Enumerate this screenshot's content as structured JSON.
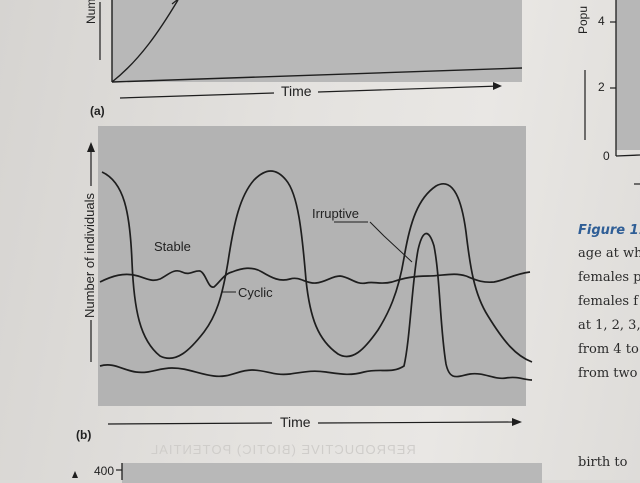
{
  "panel_a": {
    "tag": "(a)",
    "xlabel": "Time",
    "ylabel_fragment": "Num"
  },
  "panel_b": {
    "tag": "(b)",
    "xlabel": "Time",
    "ylabel": "Number of individuals",
    "labels": {
      "stable": "Stable",
      "cyclic": "Cyclic",
      "irruptive": "Irruptive"
    }
  },
  "panel_c": {
    "tick_label": "400"
  },
  "right_panel": {
    "ylabel_fragment": "Popu",
    "tick_4": "4",
    "tick_2": "2",
    "tick_0": "0"
  },
  "caption": {
    "figure_fragment": "Figure 11.",
    "lines": [
      "age at wh",
      "females p",
      "females f",
      "at 1, 2, 3,",
      "from 4 to",
      "from two"
    ],
    "bottom_fragment": "birth to"
  },
  "bleed_through": "REPRODUCTIVE (BIOTIC) POTENTIAL",
  "colors": {
    "page": "#e4e2df",
    "panel": "#b3b3b3",
    "ink": "#1e1e1e",
    "caption_blue": "#2f5e96"
  }
}
